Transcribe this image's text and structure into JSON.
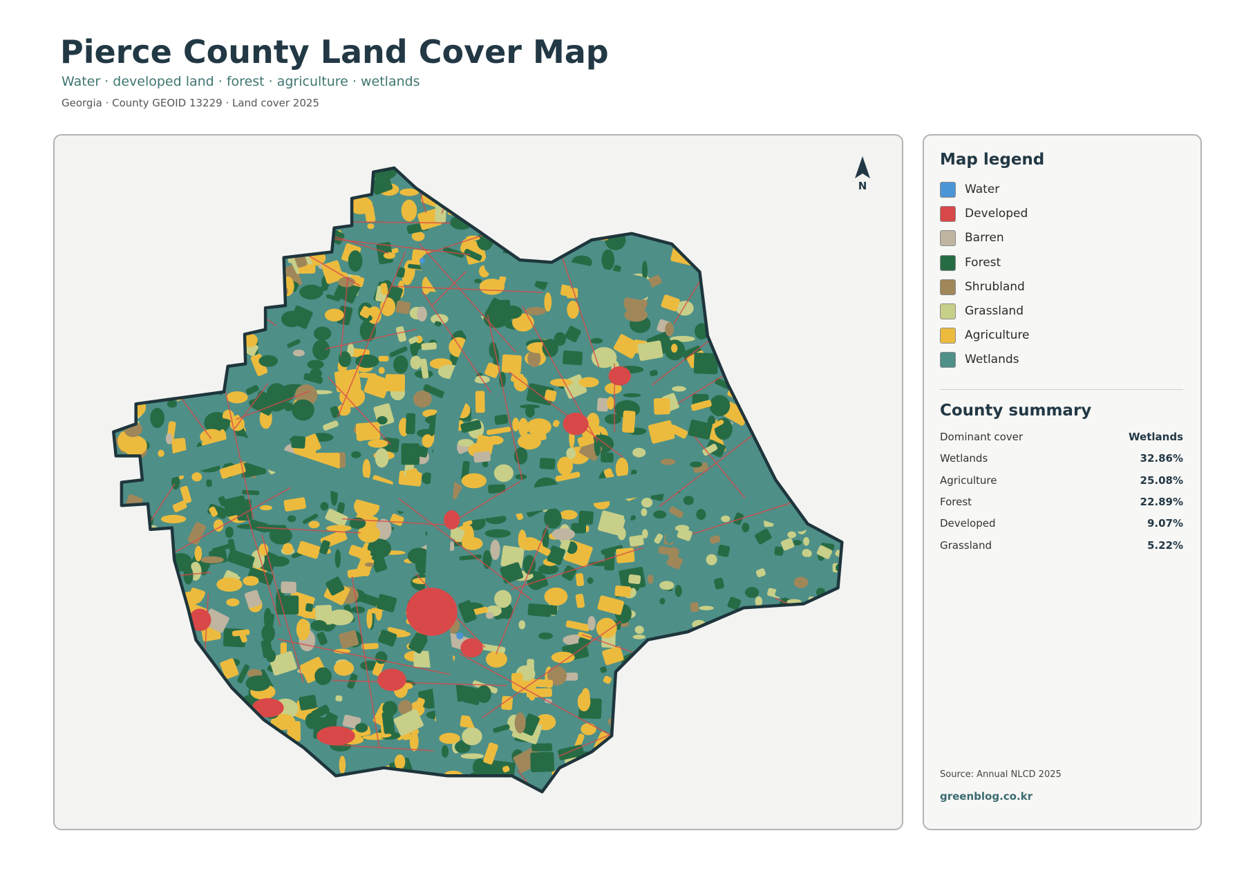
{
  "header": {
    "title": "Pierce County Land Cover Map",
    "subtitle": "Water · developed land · forest · agriculture · wetlands",
    "meta": "Georgia · County GEOID 13229 · Land cover 2025"
  },
  "map": {
    "north_label": "N"
  },
  "legend": {
    "title": "Map legend",
    "items": [
      {
        "label": "Water",
        "color": "#4b95d6"
      },
      {
        "label": "Developed",
        "color": "#d94848"
      },
      {
        "label": "Barren",
        "color": "#bfb5a0"
      },
      {
        "label": "Forest",
        "color": "#276b45"
      },
      {
        "label": "Shrubland",
        "color": "#a0875a"
      },
      {
        "label": "Grassland",
        "color": "#c8cf88"
      },
      {
        "label": "Agriculture",
        "color": "#ecbb3e"
      },
      {
        "label": "Wetlands",
        "color": "#4e8f88"
      }
    ]
  },
  "summary": {
    "title": "County summary",
    "rows": [
      [
        "Dominant cover",
        "Wetlands"
      ],
      [
        "Wetlands",
        "32.86%"
      ],
      [
        "Agriculture",
        "25.08%"
      ],
      [
        "Forest",
        "22.89%"
      ],
      [
        "Developed",
        "9.07%"
      ],
      [
        "Grassland",
        "5.22%"
      ]
    ]
  },
  "footer": {
    "source": "Source: Annual NLCD 2025",
    "site": "greenblog.co.kr"
  }
}
